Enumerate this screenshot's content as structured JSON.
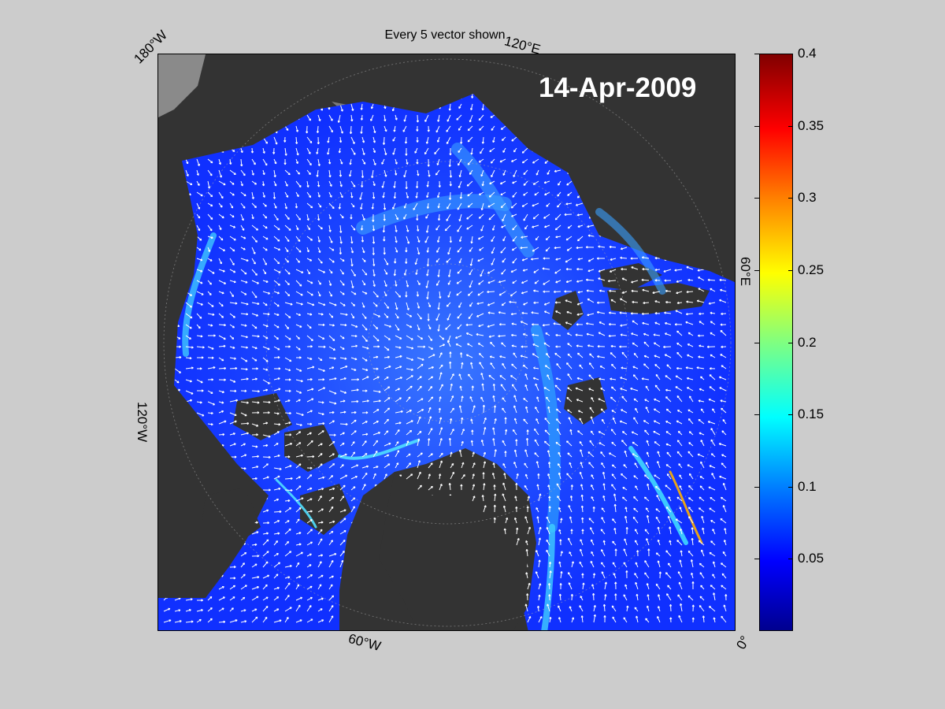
{
  "figure": {
    "title": "Every 5 vector shown",
    "date_label": "14-Apr-2009"
  },
  "map": {
    "projection": "polar stereographic (Arctic)",
    "edge_labels": {
      "lon_180w": "180°W",
      "lon_120e": "120°E",
      "lon_60e": "60°E",
      "lon_120w": "120°W",
      "lon_60w": "60°W",
      "lon_0": "0°"
    },
    "colors": {
      "land": "#333333",
      "ice_free_land_edge": "#8a8a8a",
      "field_base": "#1030ff",
      "vectors": "#ffffff"
    },
    "vector_spacing_note": "Every 5 vector shown"
  },
  "colorbar": {
    "min": 0,
    "max": 0.4,
    "colormap": "jet",
    "ticks": [
      "0.4",
      "0.35",
      "0.3",
      "0.25",
      "0.2",
      "0.15",
      "0.1",
      "0.05"
    ],
    "tick_values": [
      0.4,
      0.35,
      0.3,
      0.25,
      0.2,
      0.15,
      0.1,
      0.05
    ]
  }
}
